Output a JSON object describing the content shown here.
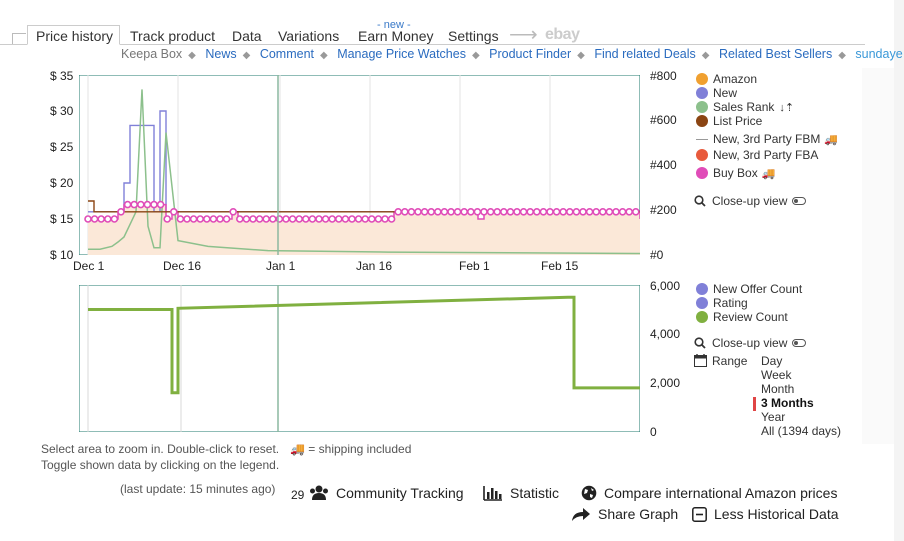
{
  "tabs": [
    {
      "label": "Price history",
      "active": true
    },
    {
      "label": "Track product"
    },
    {
      "label": "Data"
    },
    {
      "label": "Variations"
    },
    {
      "label": "Earn Money",
      "badge": "- new -"
    },
    {
      "label": "Settings"
    },
    {
      "label": "ebay"
    }
  ],
  "sublinks": [
    "Keepa Box",
    "News",
    "Comment",
    "Manage Price Watches",
    "Product Finder",
    "Find related Deals",
    "Related Best Sellers",
    "sundaye"
  ],
  "price_chart": {
    "y_left_ticks": [
      "$ 35",
      "$ 30",
      "$ 25",
      "$ 20",
      "$ 15",
      "$ 10"
    ],
    "y_right_ticks": [
      "#800",
      "#600",
      "#400",
      "#200",
      "#0"
    ],
    "x_ticks": [
      "Dec 1",
      "Dec 16",
      "Jan 1",
      "Jan 16",
      "Feb 1",
      "Feb 15"
    ]
  },
  "legend_top": [
    {
      "label": "Amazon",
      "color": "#f0a030"
    },
    {
      "label": "New",
      "color": "#8080d8"
    },
    {
      "label": "Sales Rank",
      "color": "#8cc08c",
      "suffix": "↓⇡"
    },
    {
      "label": "List Price",
      "color": "#8b4513"
    },
    {
      "label": "New, 3rd Party FBM",
      "color": "#999999",
      "truck": true,
      "dash": true
    },
    {
      "label": "New, 3rd Party FBA",
      "color": "#e85a3c"
    },
    {
      "label": "Buy Box",
      "color": "#e04cb8",
      "truck": true
    }
  ],
  "closeup_label": "Close-up view",
  "count_chart": {
    "y_right_ticks": [
      "6,000",
      "4,000",
      "2,000",
      "0"
    ]
  },
  "legend_bottom": [
    {
      "label": "New Offer Count",
      "color": "#8080d8"
    },
    {
      "label": "Rating",
      "color": "#8080d8"
    },
    {
      "label": "Review Count",
      "color": "#80b040"
    }
  ],
  "range": {
    "label": "Range",
    "options": [
      "Day",
      "Week",
      "Month",
      "3 Months",
      "Year",
      "All (1394 days)"
    ],
    "selected": "3 Months"
  },
  "hints": {
    "zoom": "Select area to zoom in. Double-click to reset.",
    "shipping": "= shipping included",
    "toggle": "Toggle shown data by clicking on the legend.",
    "last_update": "(last update: 15 minutes ago)"
  },
  "actions": {
    "tracking_count": "29",
    "community_tracking": "Community Tracking",
    "statistic": "Statistic",
    "compare": "Compare international Amazon prices",
    "share": "Share Graph",
    "less_history": "Less Historical Data"
  },
  "chart_data": [
    {
      "type": "line",
      "x_ticks": [
        "Dec 1",
        "Dec 16",
        "Jan 1",
        "Jan 16",
        "Feb 1",
        "Feb 15"
      ],
      "ylim_left": [
        10,
        35
      ],
      "ylim_right": [
        0,
        800
      ],
      "series": [
        {
          "name": "New",
          "color": "#8080d8",
          "x_days": [
            0,
            5,
            6,
            7,
            8,
            10,
            11,
            12,
            13,
            92
          ],
          "values": [
            16,
            16,
            20,
            28,
            28,
            28,
            16,
            30,
            16,
            16
          ]
        },
        {
          "name": "Sales Rank",
          "color": "#8cc08c",
          "x_days": [
            0,
            2,
            4,
            5,
            6,
            8,
            9,
            10,
            11,
            12,
            13,
            15,
            20,
            30,
            50,
            92
          ],
          "values": [
            10.8,
            10.8,
            11.2,
            11.8,
            12.5,
            16,
            33,
            14,
            11,
            11,
            27,
            12,
            11.2,
            10.6,
            10.4,
            10.2
          ]
        },
        {
          "name": "Buy Box",
          "color": "#e04cb8",
          "x_days": [
            0,
            4,
            5,
            6,
            13,
            14,
            15,
            24,
            25,
            50,
            51,
            65,
            66,
            92
          ],
          "values": [
            15,
            15,
            16,
            17,
            15,
            16,
            15,
            16,
            15,
            15,
            16,
            15,
            16,
            15
          ]
        },
        {
          "name": "List Price",
          "color": "#8b4513",
          "x_days": [
            0,
            1,
            13,
            92
          ],
          "values": [
            17.5,
            16,
            16,
            16
          ]
        }
      ]
    },
    {
      "type": "line",
      "ylim": [
        0,
        6000
      ],
      "series": [
        {
          "name": "Review Count",
          "color": "#80b040",
          "x_days": [
            0,
            13,
            14,
            15,
            80,
            81,
            92
          ],
          "values": [
            5000,
            5000,
            1600,
            5050,
            5500,
            1800,
            1800
          ]
        }
      ]
    }
  ]
}
